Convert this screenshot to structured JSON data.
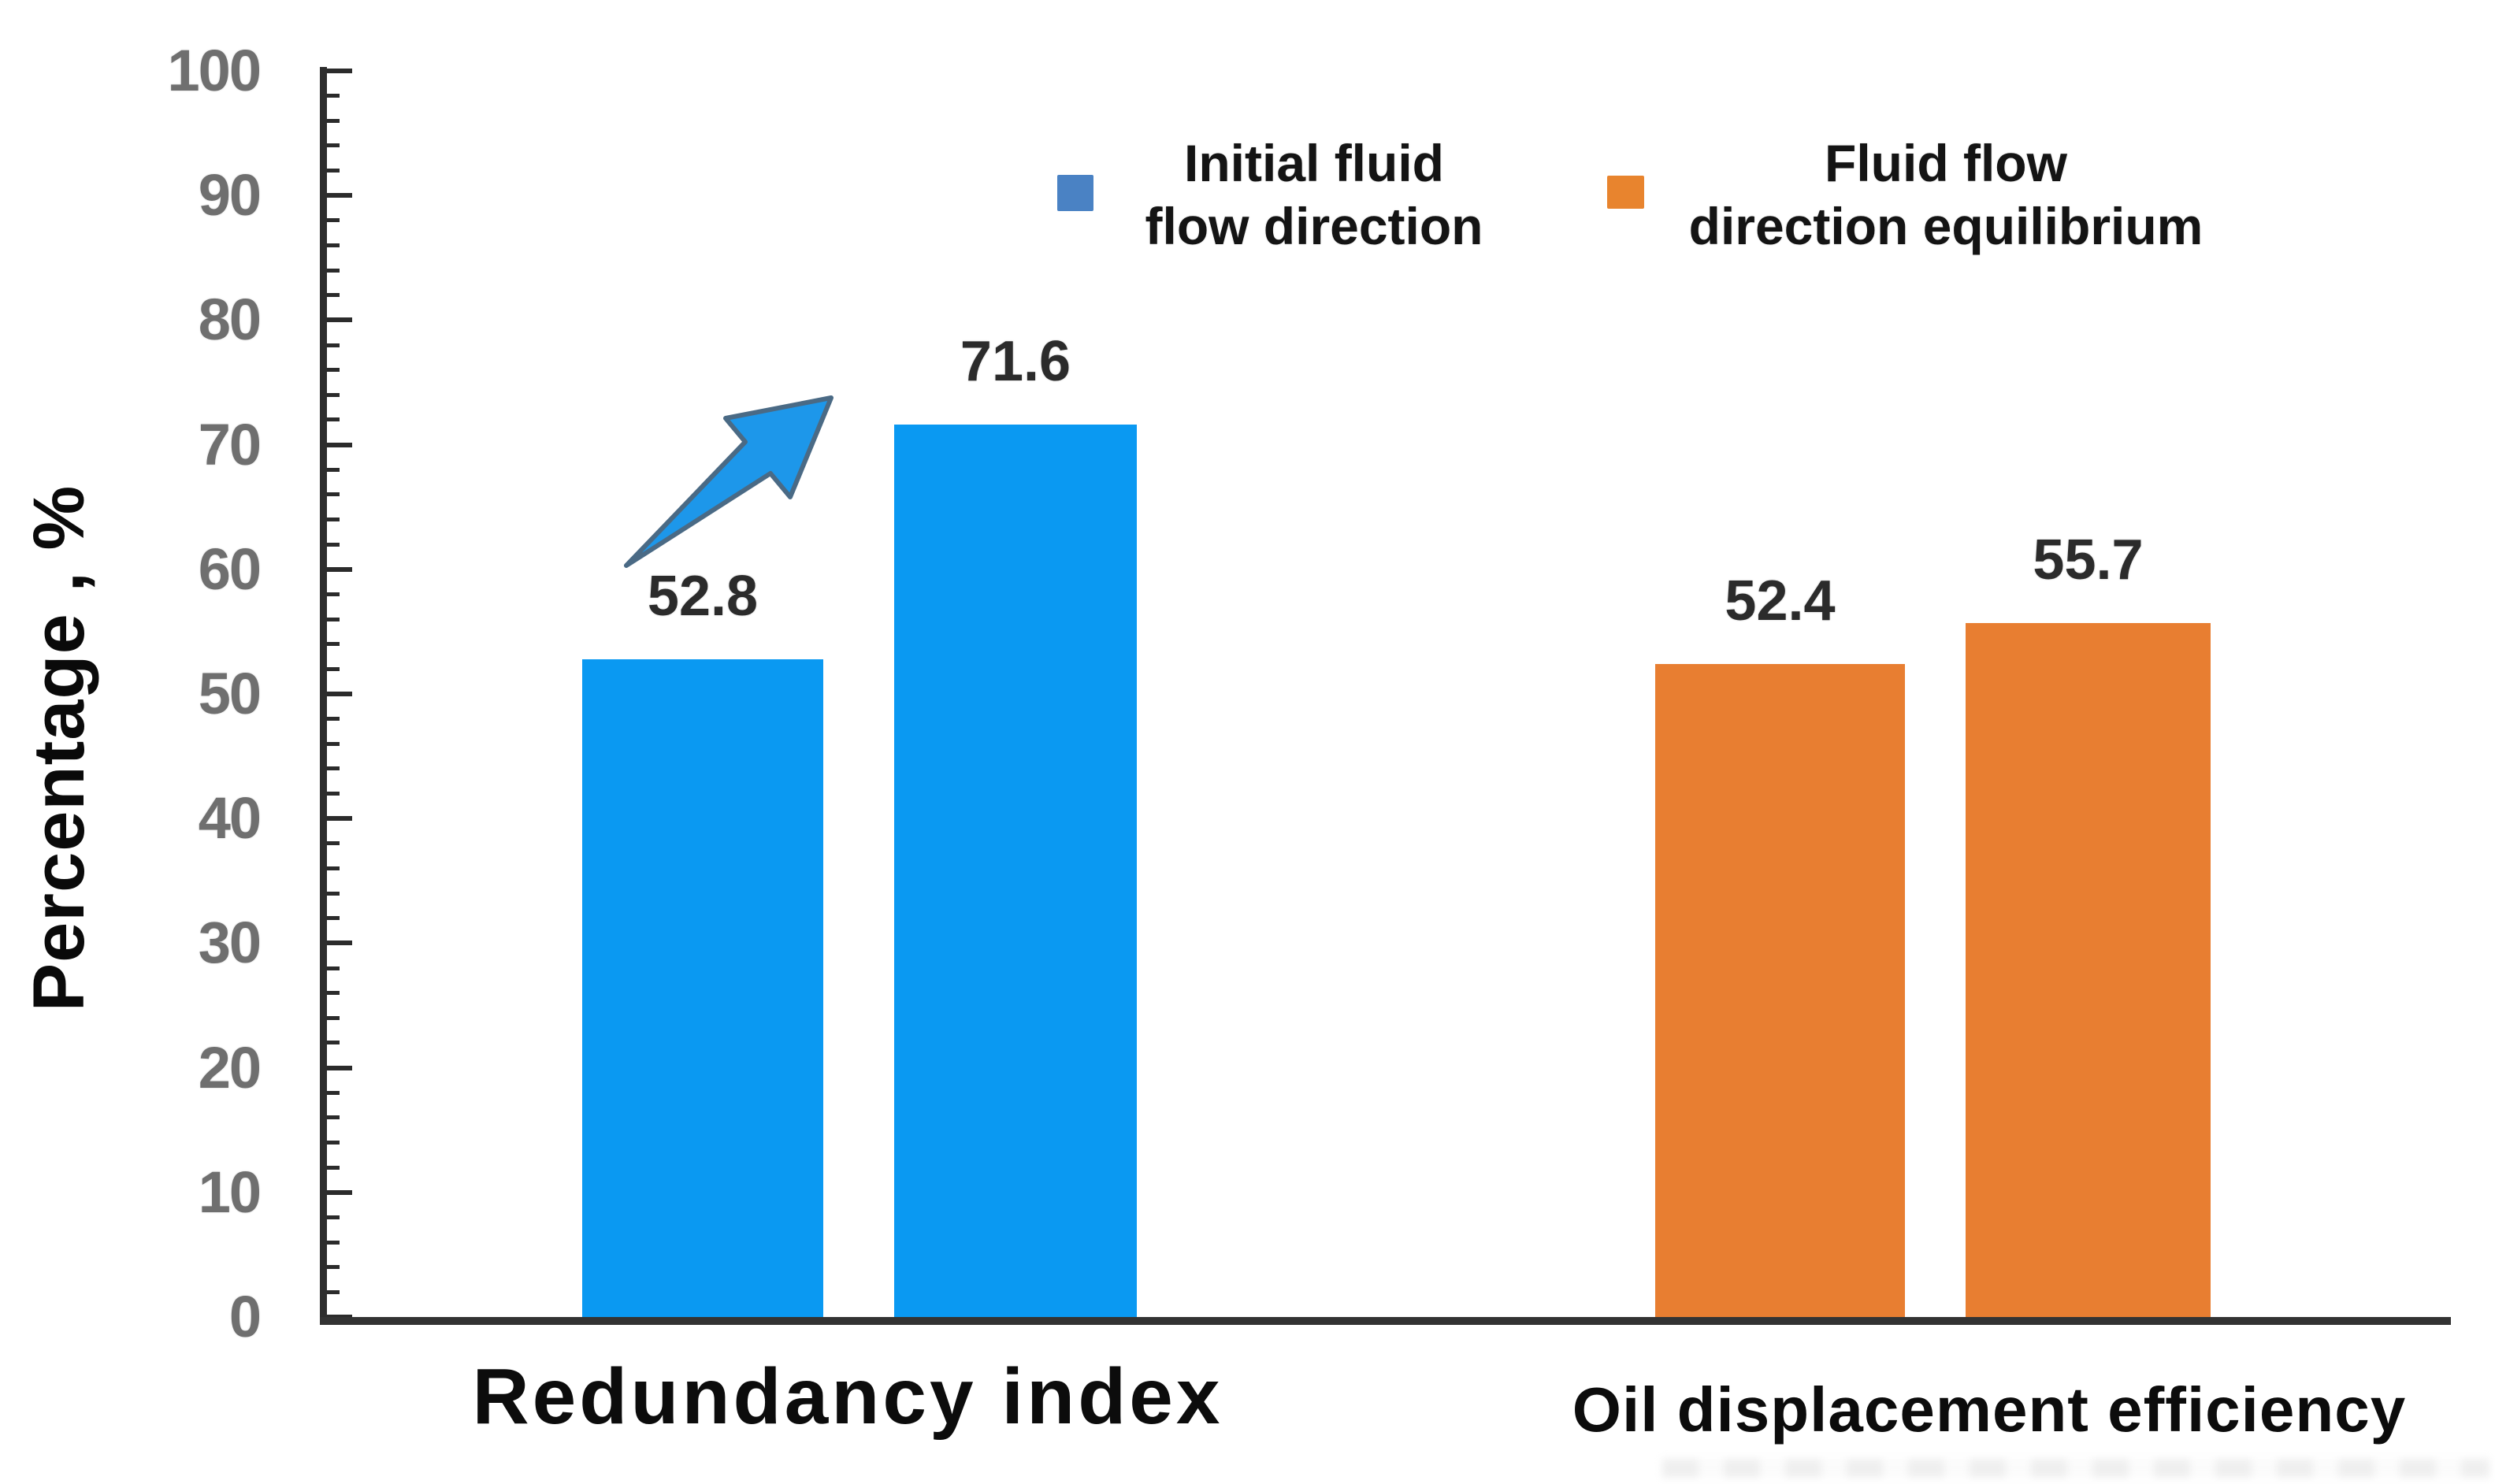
{
  "chart_data": {
    "type": "bar",
    "title": "",
    "xlabel": "",
    "ylabel": "Percentage , %",
    "ylim": [
      0,
      100
    ],
    "ytick_major_interval": 10,
    "ytick_minor_interval": 2,
    "yticks": [
      "0",
      "10",
      "20",
      "30",
      "40",
      "50",
      "60",
      "70",
      "80",
      "90",
      "100"
    ],
    "grid": "off",
    "legend_position": "top-center",
    "categories": [
      "Redundancy index",
      "Oil displacement efficiency"
    ],
    "series": [
      {
        "name": "Initial fluid flow direction",
        "values": [
          52.8,
          52.4
        ]
      },
      {
        "name": "Fluid flow direction equilibrium",
        "values": [
          71.6,
          55.7
        ]
      }
    ],
    "bar_fill_by_category": {
      "Redundancy index": "#0a99f2",
      "Oil displacement efficiency": "#e87e31"
    },
    "annotations": [
      {
        "type": "increase-arrow",
        "category": "Redundancy index",
        "from": 52.8,
        "to": 71.6
      }
    ]
  },
  "bars": [
    {
      "label": "52.8",
      "value": 52.8,
      "fill": "#0a99f2",
      "category": "Redundancy index",
      "series": "Initial fluid flow direction"
    },
    {
      "label": "71.6",
      "value": 71.6,
      "fill": "#0a99f2",
      "category": "Redundancy index",
      "series": "Fluid flow direction equilibrium"
    },
    {
      "label": "52.4",
      "value": 52.4,
      "fill": "#e87e31",
      "category": "Oil displacement efficiency",
      "series": "Initial fluid flow direction"
    },
    {
      "label": "55.7",
      "value": 55.7,
      "fill": "#e87e31",
      "category": "Oil displacement efficiency",
      "series": "Fluid flow direction equilibrium"
    }
  ],
  "legend": {
    "items": [
      {
        "line1": "Initial fluid",
        "line2": "flow direction",
        "swatch_color": "#4a82c4"
      },
      {
        "line1": "Fluid flow",
        "line2": "direction equilibrium",
        "swatch_color": "#e8842e"
      }
    ]
  },
  "axis": {
    "ylabel": "Percentage , %",
    "tick_label_color": "#6f6f6f",
    "line_color": "#2d2d2d"
  },
  "colors": {
    "background": "#ffffff",
    "blue_bar": "#0a99f2",
    "orange_bar": "#e87e31",
    "legend_blue": "#4a82c4",
    "legend_orange": "#e8842e",
    "arrow_fill": "#1d97ea",
    "arrow_stroke": "#4a6a85"
  }
}
